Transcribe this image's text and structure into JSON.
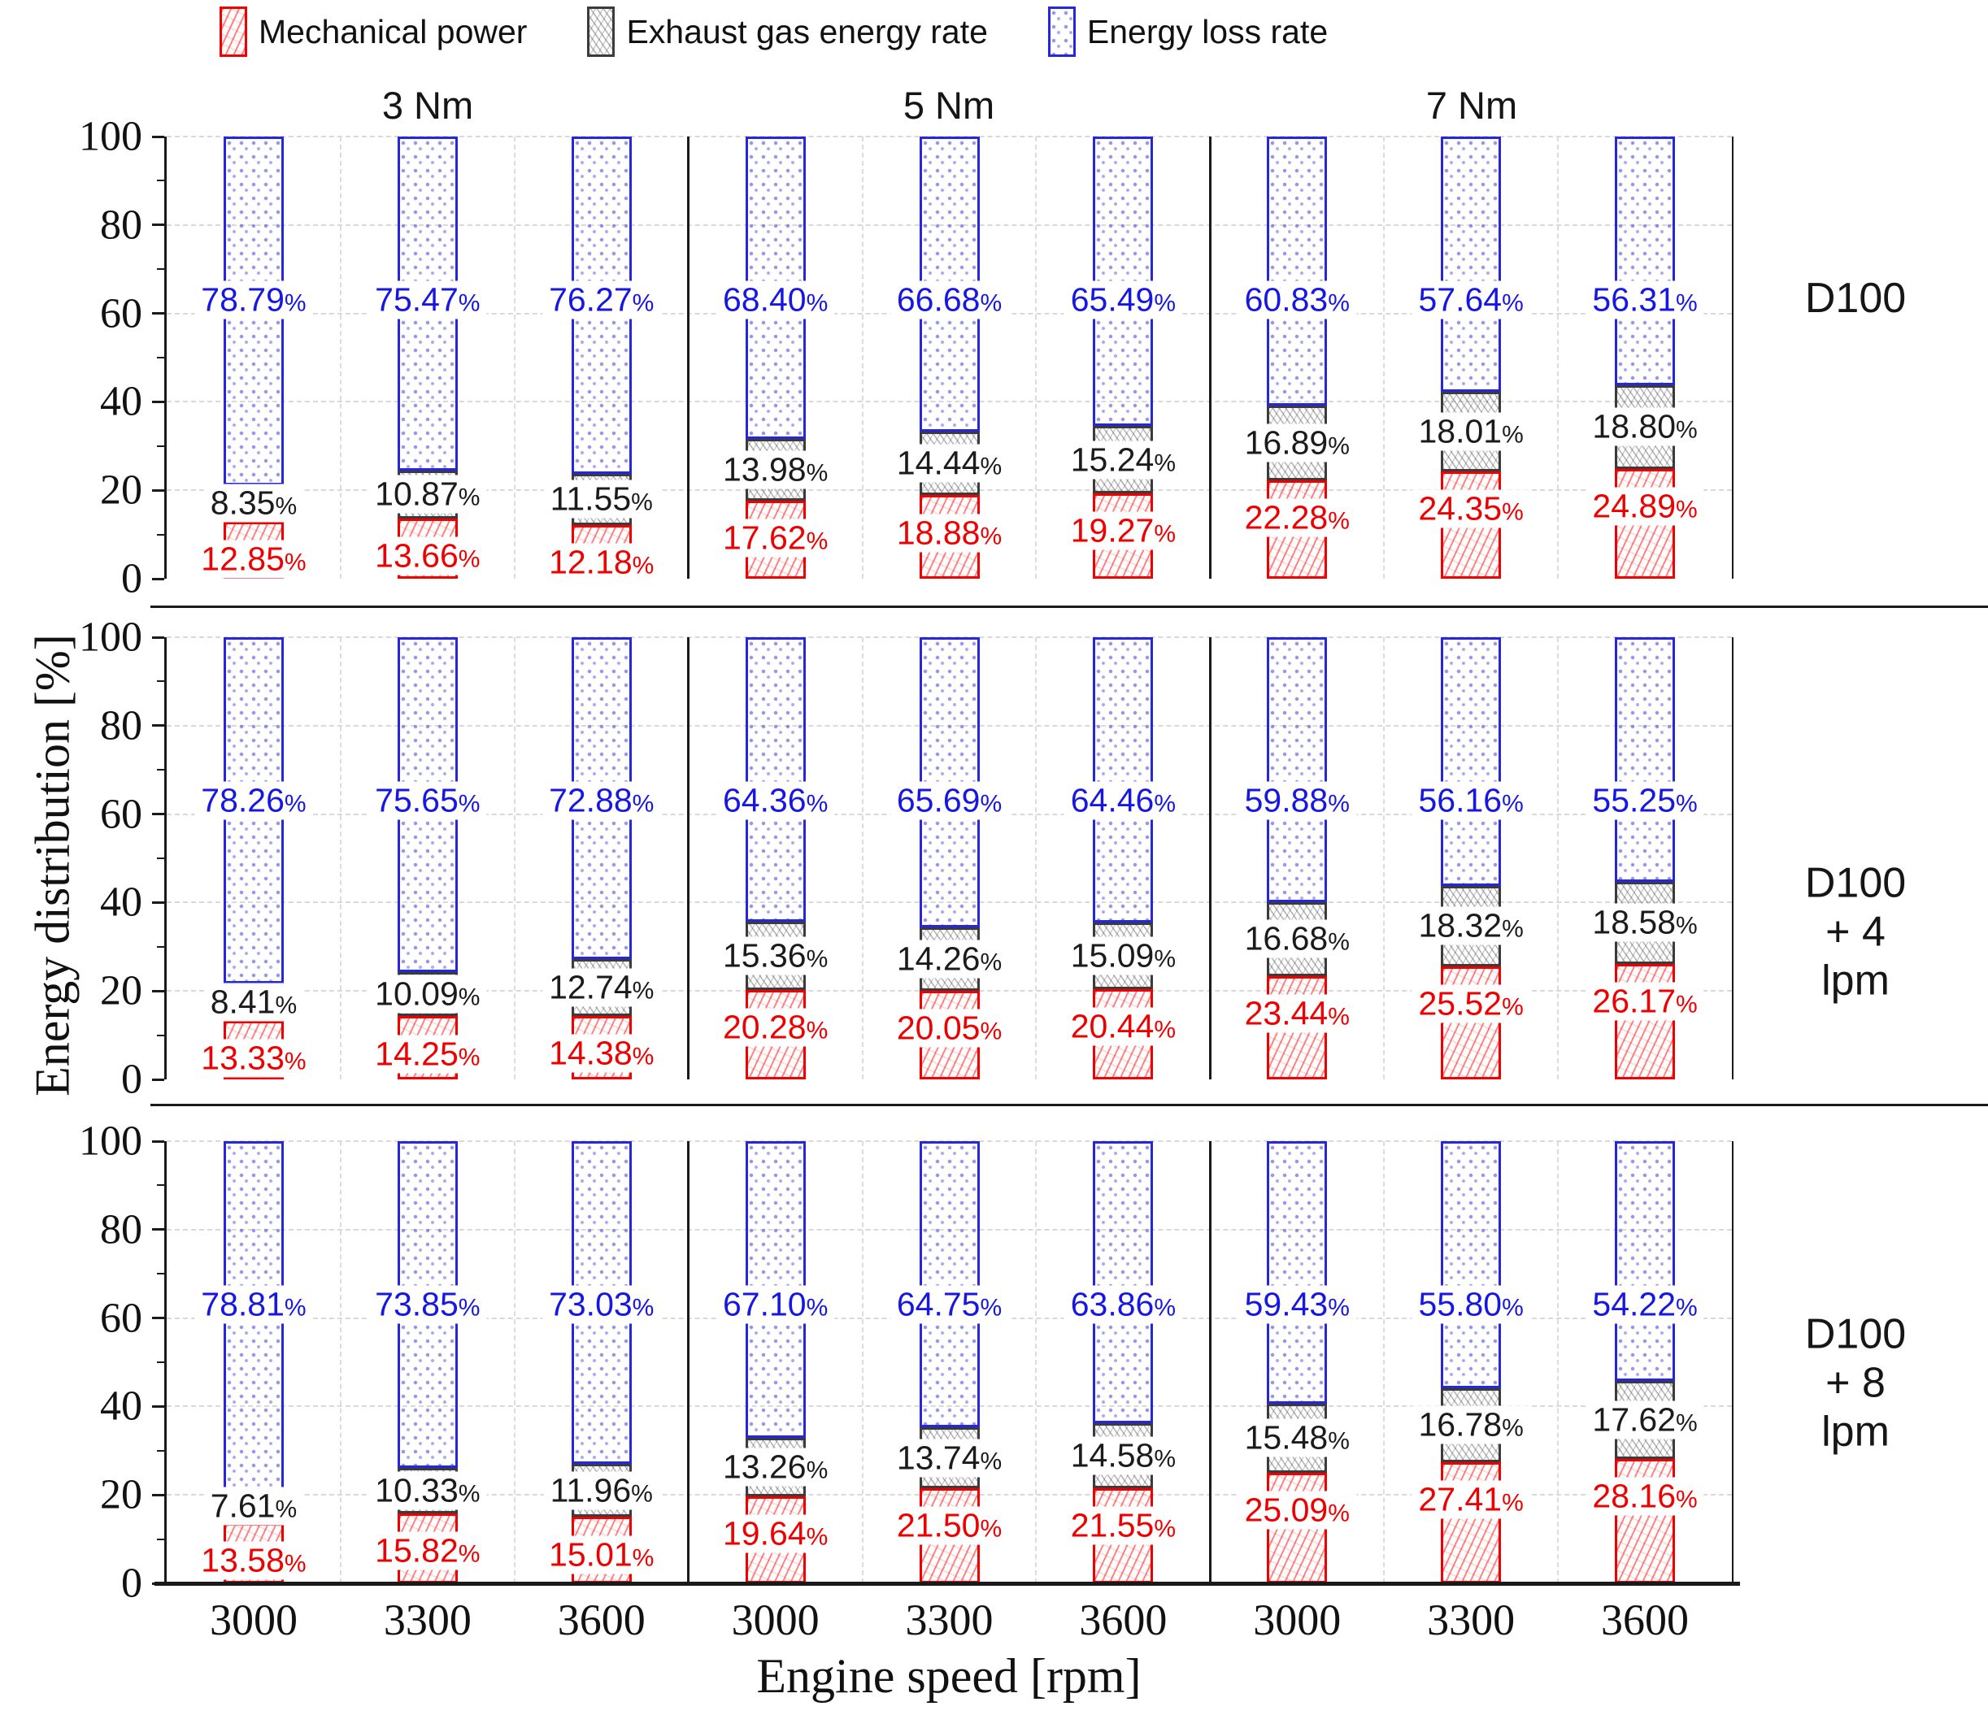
{
  "chart_data": {
    "type": "bar",
    "stacked": true,
    "xlabel": "Engine speed [rpm]",
    "ylabel": "Energy distribution  [%]",
    "ylim": [
      0,
      100
    ],
    "yticks": [
      0,
      20,
      40,
      60,
      80,
      100
    ],
    "grid": "dashed horizontal at 20% steps, dashed vertical between bars",
    "legend_position": "top",
    "legend": [
      {
        "key": "mechanical",
        "label": "Mechanical power",
        "color": "#f20000"
      },
      {
        "key": "exhaust",
        "label": "Exhaust gas energy rate",
        "color": "#3b3b3b"
      },
      {
        "key": "loss",
        "label": "Energy loss rate",
        "color": "#2626df"
      }
    ],
    "torque_groups": [
      "3 Nm",
      "5 Nm",
      "7 Nm"
    ],
    "speeds": [
      "3000",
      "3300",
      "3600"
    ],
    "panels": [
      {
        "label": "D100",
        "label_lines": "D100",
        "groups": [
          {
            "torque": "3 Nm",
            "bars": [
              {
                "speed": "3000",
                "mechanical": "12.85",
                "exhaust": "8.35",
                "loss": "78.79"
              },
              {
                "speed": "3300",
                "mechanical": "13.66",
                "exhaust": "10.87",
                "loss": "75.47"
              },
              {
                "speed": "3600",
                "mechanical": "12.18",
                "exhaust": "11.55",
                "loss": "76.27"
              }
            ]
          },
          {
            "torque": "5 Nm",
            "bars": [
              {
                "speed": "3000",
                "mechanical": "17.62",
                "exhaust": "13.98",
                "loss": "68.40"
              },
              {
                "speed": "3300",
                "mechanical": "18.88",
                "exhaust": "14.44",
                "loss": "66.68"
              },
              {
                "speed": "3600",
                "mechanical": "19.27",
                "exhaust": "15.24",
                "loss": "65.49"
              }
            ]
          },
          {
            "torque": "7 Nm",
            "bars": [
              {
                "speed": "3000",
                "mechanical": "22.28",
                "exhaust": "16.89",
                "loss": "60.83"
              },
              {
                "speed": "3300",
                "mechanical": "24.35",
                "exhaust": "18.01",
                "loss": "57.64"
              },
              {
                "speed": "3600",
                "mechanical": "24.89",
                "exhaust": "18.80",
                "loss": "56.31"
              }
            ]
          }
        ]
      },
      {
        "label": "D100 + 4 lpm",
        "label_lines": "D100 + 4\nlpm",
        "groups": [
          {
            "torque": "3 Nm",
            "bars": [
              {
                "speed": "3000",
                "mechanical": "13.33",
                "exhaust": "8.41",
                "loss": "78.26"
              },
              {
                "speed": "3300",
                "mechanical": "14.25",
                "exhaust": "10.09",
                "loss": "75.65"
              },
              {
                "speed": "3600",
                "mechanical": "14.38",
                "exhaust": "12.74",
                "loss": "72.88"
              }
            ]
          },
          {
            "torque": "5 Nm",
            "bars": [
              {
                "speed": "3000",
                "mechanical": "20.28",
                "exhaust": "15.36",
                "loss": "64.36"
              },
              {
                "speed": "3300",
                "mechanical": "20.05",
                "exhaust": "14.26",
                "loss": "65.69"
              },
              {
                "speed": "3600",
                "mechanical": "20.44",
                "exhaust": "15.09",
                "loss": "64.46"
              }
            ]
          },
          {
            "torque": "7 Nm",
            "bars": [
              {
                "speed": "3000",
                "mechanical": "23.44",
                "exhaust": "16.68",
                "loss": "59.88"
              },
              {
                "speed": "3300",
                "mechanical": "25.52",
                "exhaust": "18.32",
                "loss": "56.16"
              },
              {
                "speed": "3600",
                "mechanical": "26.17",
                "exhaust": "18.58",
                "loss": "55.25"
              }
            ]
          }
        ]
      },
      {
        "label": "D100 + 8 lpm",
        "label_lines": "D100 + 8\nlpm",
        "groups": [
          {
            "torque": "3 Nm",
            "bars": [
              {
                "speed": "3000",
                "mechanical": "13.58",
                "exhaust": "7.61",
                "loss": "78.81"
              },
              {
                "speed": "3300",
                "mechanical": "15.82",
                "exhaust": "10.33",
                "loss": "73.85"
              },
              {
                "speed": "3600",
                "mechanical": "15.01",
                "exhaust": "11.96",
                "loss": "73.03"
              }
            ]
          },
          {
            "torque": "5 Nm",
            "bars": [
              {
                "speed": "3000",
                "mechanical": "19.64",
                "exhaust": "13.26",
                "loss": "67.10"
              },
              {
                "speed": "3300",
                "mechanical": "21.50",
                "exhaust": "13.74",
                "loss": "64.75"
              },
              {
                "speed": "3600",
                "mechanical": "21.55",
                "exhaust": "14.58",
                "loss": "63.86"
              }
            ]
          },
          {
            "torque": "7 Nm",
            "bars": [
              {
                "speed": "3000",
                "mechanical": "25.09",
                "exhaust": "15.48",
                "loss": "59.43"
              },
              {
                "speed": "3300",
                "mechanical": "27.41",
                "exhaust": "16.78",
                "loss": "55.80"
              },
              {
                "speed": "3600",
                "mechanical": "28.16",
                "exhaust": "17.62",
                "loss": "54.22"
              }
            ]
          }
        ]
      }
    ]
  }
}
